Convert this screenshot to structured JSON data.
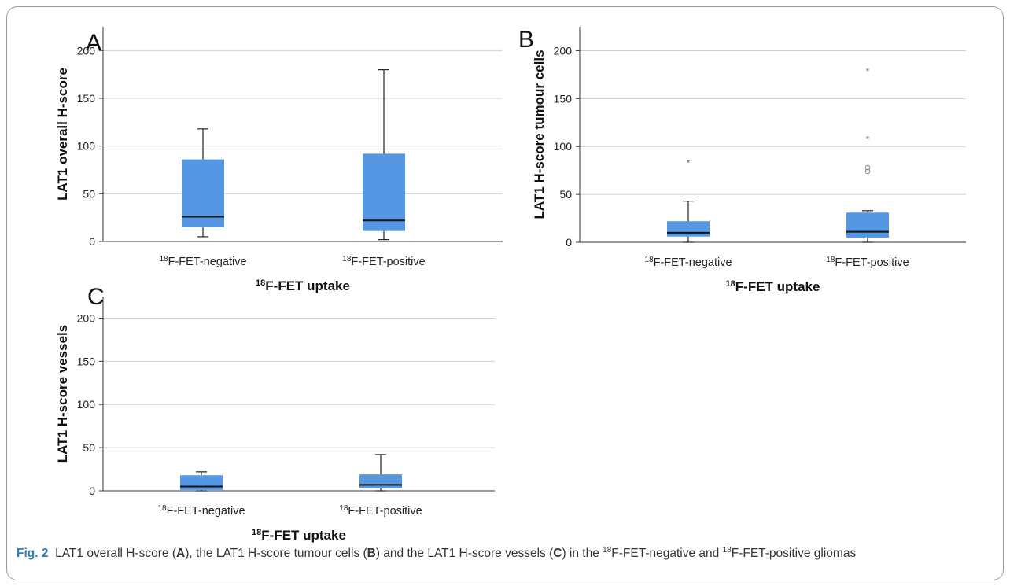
{
  "figure": {
    "caption": {
      "fig_label": "Fig. 2",
      "t1": "LAT1 overall H-score (",
      "pA": "A",
      "t2": "), the LAT1 H-score tumour cells (",
      "pB": "B",
      "t3": ") and the LAT1 H-score vessels (",
      "pC": "C",
      "t4": ") in the ",
      "sup1": "18",
      "t5": "F-FET-negative and ",
      "sup2": "18",
      "t6": "F-FET-positive gliomas"
    }
  },
  "colors": {
    "box_fill": "#5597e3",
    "whisker": "#222222",
    "median": "#111111",
    "grid": "#cfcfcf",
    "outlier": "#555555"
  },
  "chart_data": [
    {
      "type": "box",
      "panel": "A",
      "ylabel": "LAT1 overall H-score",
      "xlabel_sup": "18",
      "xlabel": "F-FET uptake",
      "ylim": [
        0,
        225
      ],
      "yticks": [
        0,
        50,
        100,
        150,
        200
      ],
      "grid": true,
      "categories": [
        {
          "sup": "18",
          "label": "F-FET-negative",
          "whisker_low": 5,
          "q1": 15,
          "median": 26,
          "q3": 86,
          "whisker_high": 118,
          "outliers": []
        },
        {
          "sup": "18",
          "label": "F-FET-positive",
          "whisker_low": 2,
          "q1": 11,
          "median": 22,
          "q3": 92,
          "whisker_high": 180,
          "outliers": []
        }
      ]
    },
    {
      "type": "box",
      "panel": "B",
      "ylabel": "LAT1 H-score tumour cells",
      "xlabel_sup": "18",
      "xlabel": "F-FET uptake",
      "ylim": [
        0,
        225
      ],
      "yticks": [
        0,
        50,
        100,
        150,
        200
      ],
      "grid": true,
      "categories": [
        {
          "sup": "18",
          "label": "F-FET-negative",
          "whisker_low": 0,
          "q1": 6,
          "median": 10,
          "q3": 22,
          "whisker_high": 43,
          "outliers": [
            {
              "value": 84,
              "marker": "*"
            }
          ]
        },
        {
          "sup": "18",
          "label": "F-FET-positive",
          "whisker_low": 0,
          "q1": 5,
          "median": 11,
          "q3": 31,
          "whisker_high": 33,
          "outliers": [
            {
              "value": 180,
              "marker": "*"
            },
            {
              "value": 109,
              "marker": "*"
            },
            {
              "value": 78,
              "marker": "o"
            },
            {
              "value": 74,
              "marker": "o"
            }
          ]
        }
      ]
    },
    {
      "type": "box",
      "panel": "C",
      "ylabel": "LAT1 H-score vessels",
      "xlabel_sup": "18",
      "xlabel": "F-FET uptake",
      "ylim": [
        0,
        225
      ],
      "yticks": [
        0,
        50,
        100,
        150,
        200
      ],
      "grid": true,
      "categories": [
        {
          "sup": "18",
          "label": "F-FET-negative",
          "whisker_low": 0,
          "q1": 1,
          "median": 5,
          "q3": 18,
          "whisker_high": 22,
          "outliers": []
        },
        {
          "sup": "18",
          "label": "F-FET-positive",
          "whisker_low": 0,
          "q1": 3,
          "median": 7,
          "q3": 19,
          "whisker_high": 42,
          "outliers": []
        }
      ]
    }
  ]
}
